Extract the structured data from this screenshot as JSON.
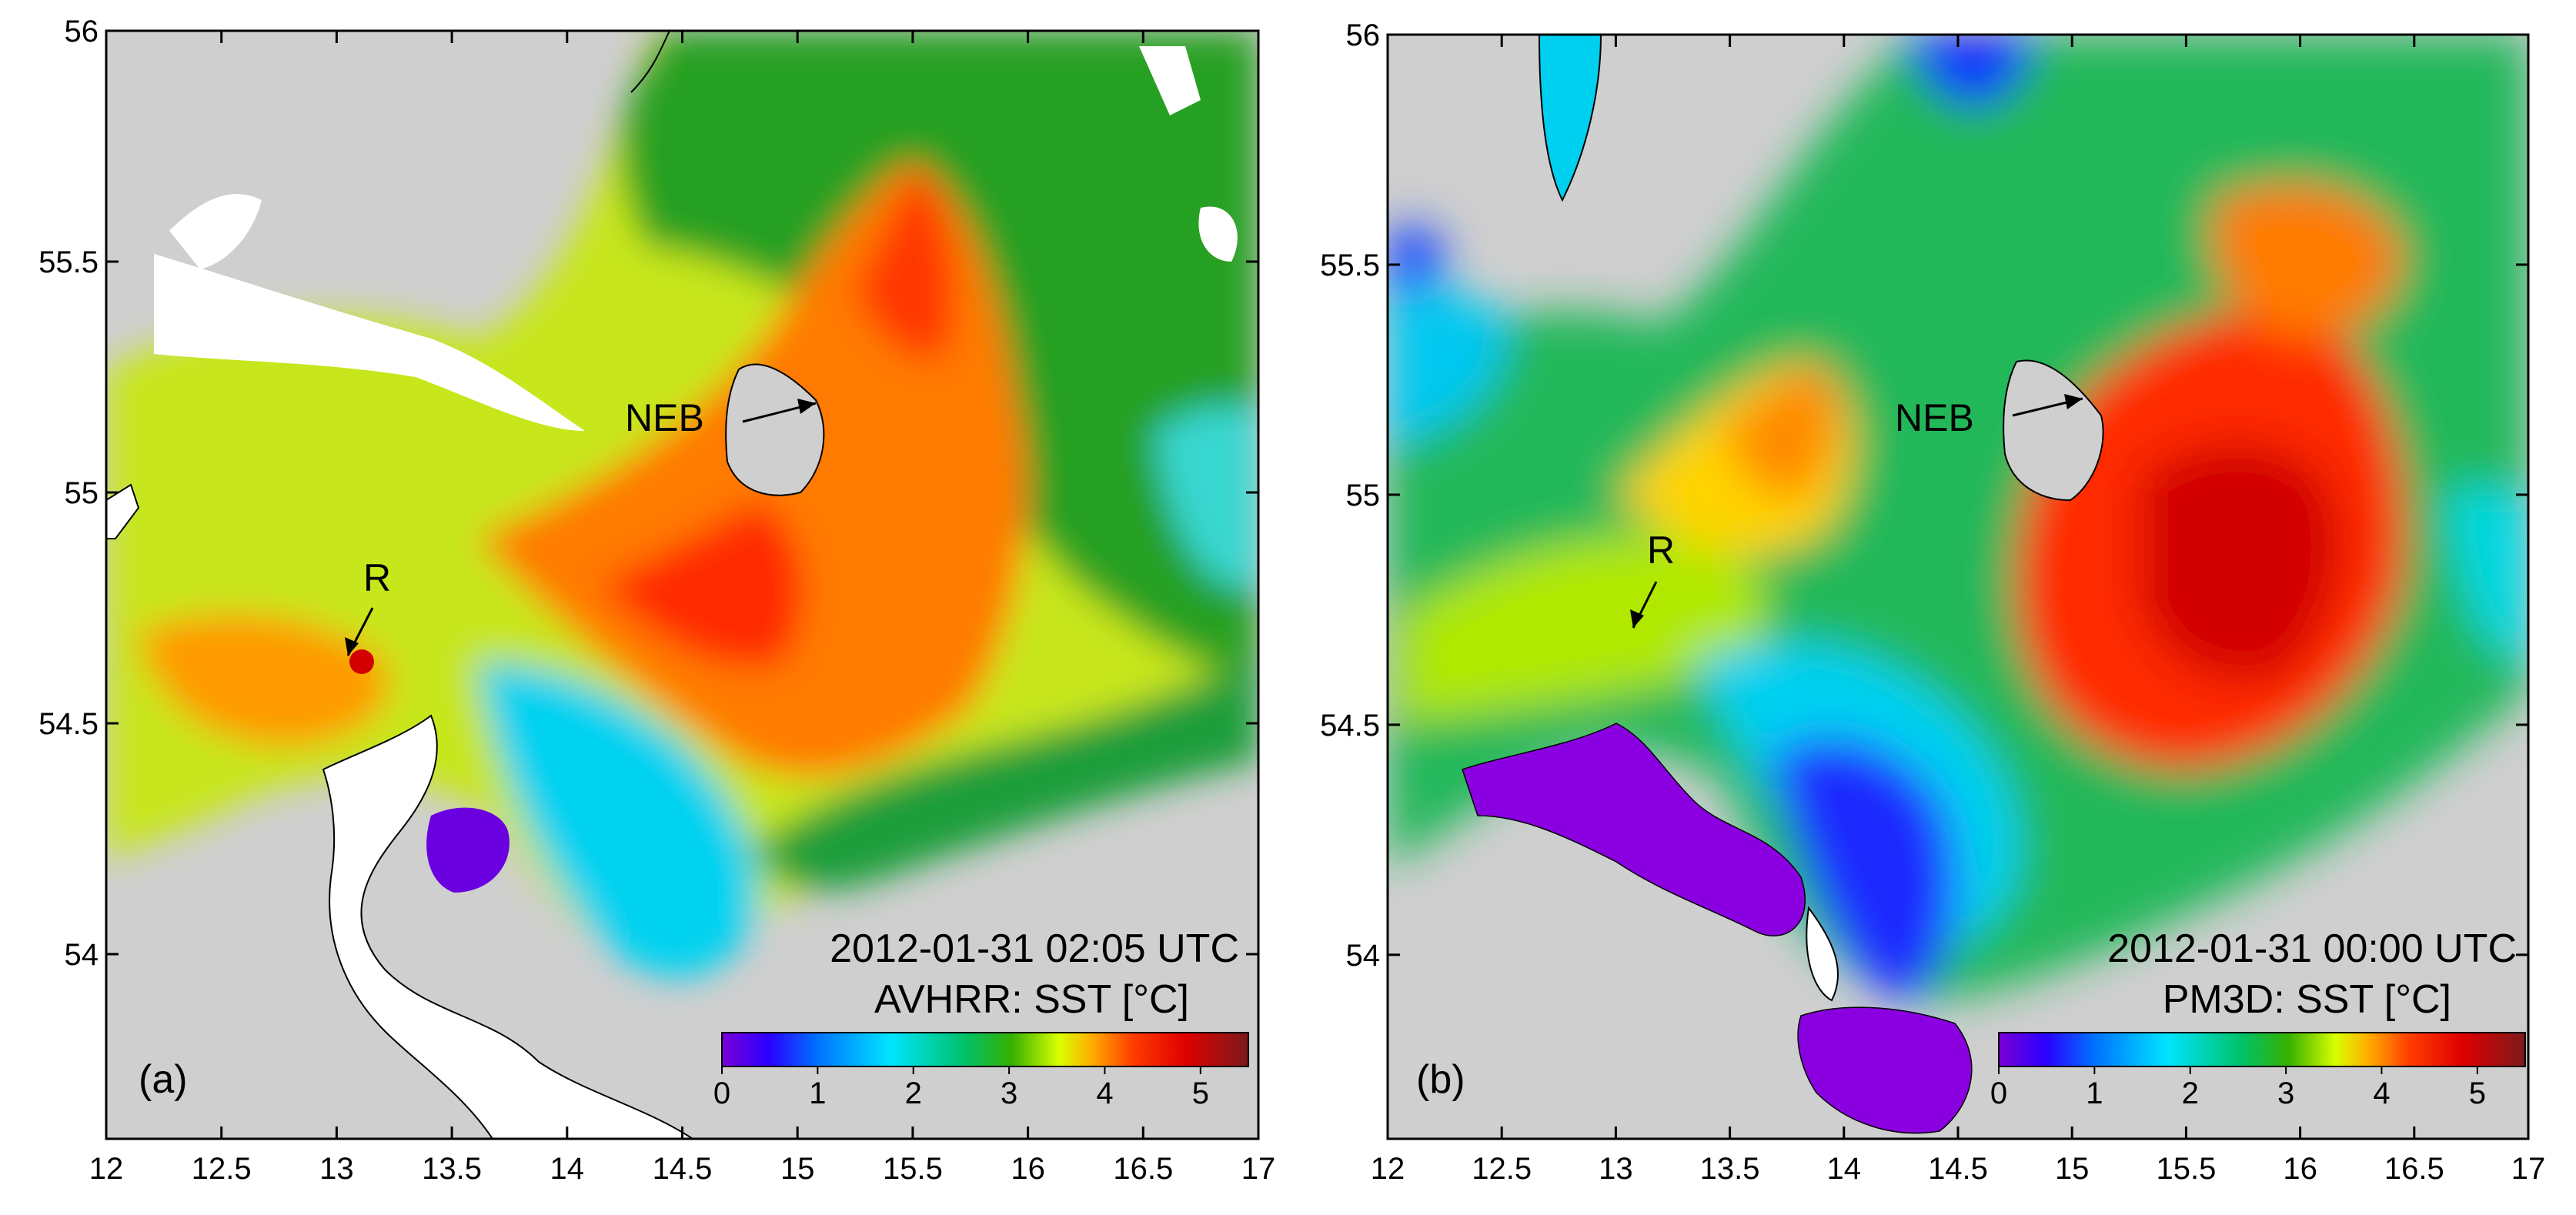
{
  "figure": {
    "panels": [
      {
        "id": "a",
        "panel_label": "(a)",
        "timestamp": "2012-01-31 02:05 UTC",
        "product": "AVHRR: SST [°C]",
        "markers": {
          "neb": "NEB",
          "r": "R"
        }
      },
      {
        "id": "b",
        "panel_label": "(b)",
        "timestamp": "2012-01-31 00:00 UTC",
        "product": "PM3D: SST [°C]",
        "markers": {
          "neb": "NEB",
          "r": "R"
        }
      }
    ],
    "axes": {
      "x_ticks": [
        "12",
        "12.5",
        "13",
        "13.5",
        "14",
        "14.5",
        "15",
        "15.5",
        "16",
        "16.5",
        "17"
      ],
      "y_ticks": [
        "56",
        "55.5",
        "55",
        "54.5",
        "54"
      ],
      "lon_range": [
        12,
        17
      ],
      "lat_range": [
        53.6,
        56
      ]
    },
    "colorbar": {
      "ticks": [
        "0",
        "1",
        "2",
        "3",
        "4",
        "5"
      ],
      "range": [
        0,
        5.5
      ],
      "colors": [
        "#7b00d6",
        "#2a00ff",
        "#0070ff",
        "#00e5ff",
        "#00c26a",
        "#35b000",
        "#d8ff00",
        "#ffb000",
        "#ff3d00",
        "#e00000",
        "#7a1a1a"
      ]
    },
    "colors": {
      "land": "#cfcfcf",
      "cloud_mask": "#ffffff",
      "coastline": "#000000"
    }
  }
}
